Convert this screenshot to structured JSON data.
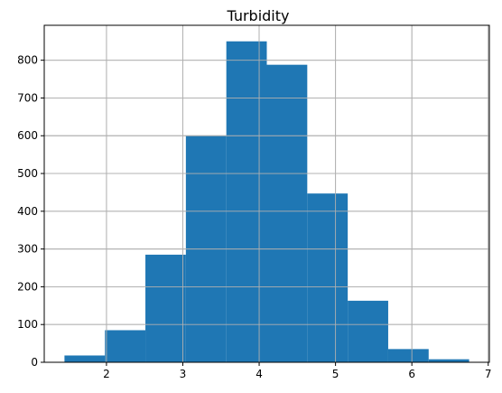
{
  "chart_data": {
    "type": "bar",
    "subtype": "histogram",
    "title": "Turbidity",
    "xlabel": "",
    "ylabel": "",
    "bins": [
      {
        "start": 1.45,
        "end": 1.98,
        "count": 18
      },
      {
        "start": 1.98,
        "end": 2.51,
        "count": 85
      },
      {
        "start": 2.51,
        "end": 3.04,
        "count": 285
      },
      {
        "start": 3.04,
        "end": 3.57,
        "count": 600
      },
      {
        "start": 3.57,
        "end": 4.1,
        "count": 850
      },
      {
        "start": 4.1,
        "end": 4.63,
        "count": 788
      },
      {
        "start": 4.63,
        "end": 5.16,
        "count": 447
      },
      {
        "start": 5.16,
        "end": 5.69,
        "count": 163
      },
      {
        "start": 5.69,
        "end": 6.22,
        "count": 35
      },
      {
        "start": 6.22,
        "end": 6.75,
        "count": 8
      }
    ],
    "xlim": [
      1.185,
      7.015
    ],
    "ylim": [
      0,
      892.5
    ],
    "xticks": [
      2,
      3,
      4,
      5,
      6,
      7
    ],
    "yticks": [
      0,
      100,
      200,
      300,
      400,
      500,
      600,
      700,
      800
    ],
    "grid": true,
    "bar_color": "#1f77b4"
  }
}
